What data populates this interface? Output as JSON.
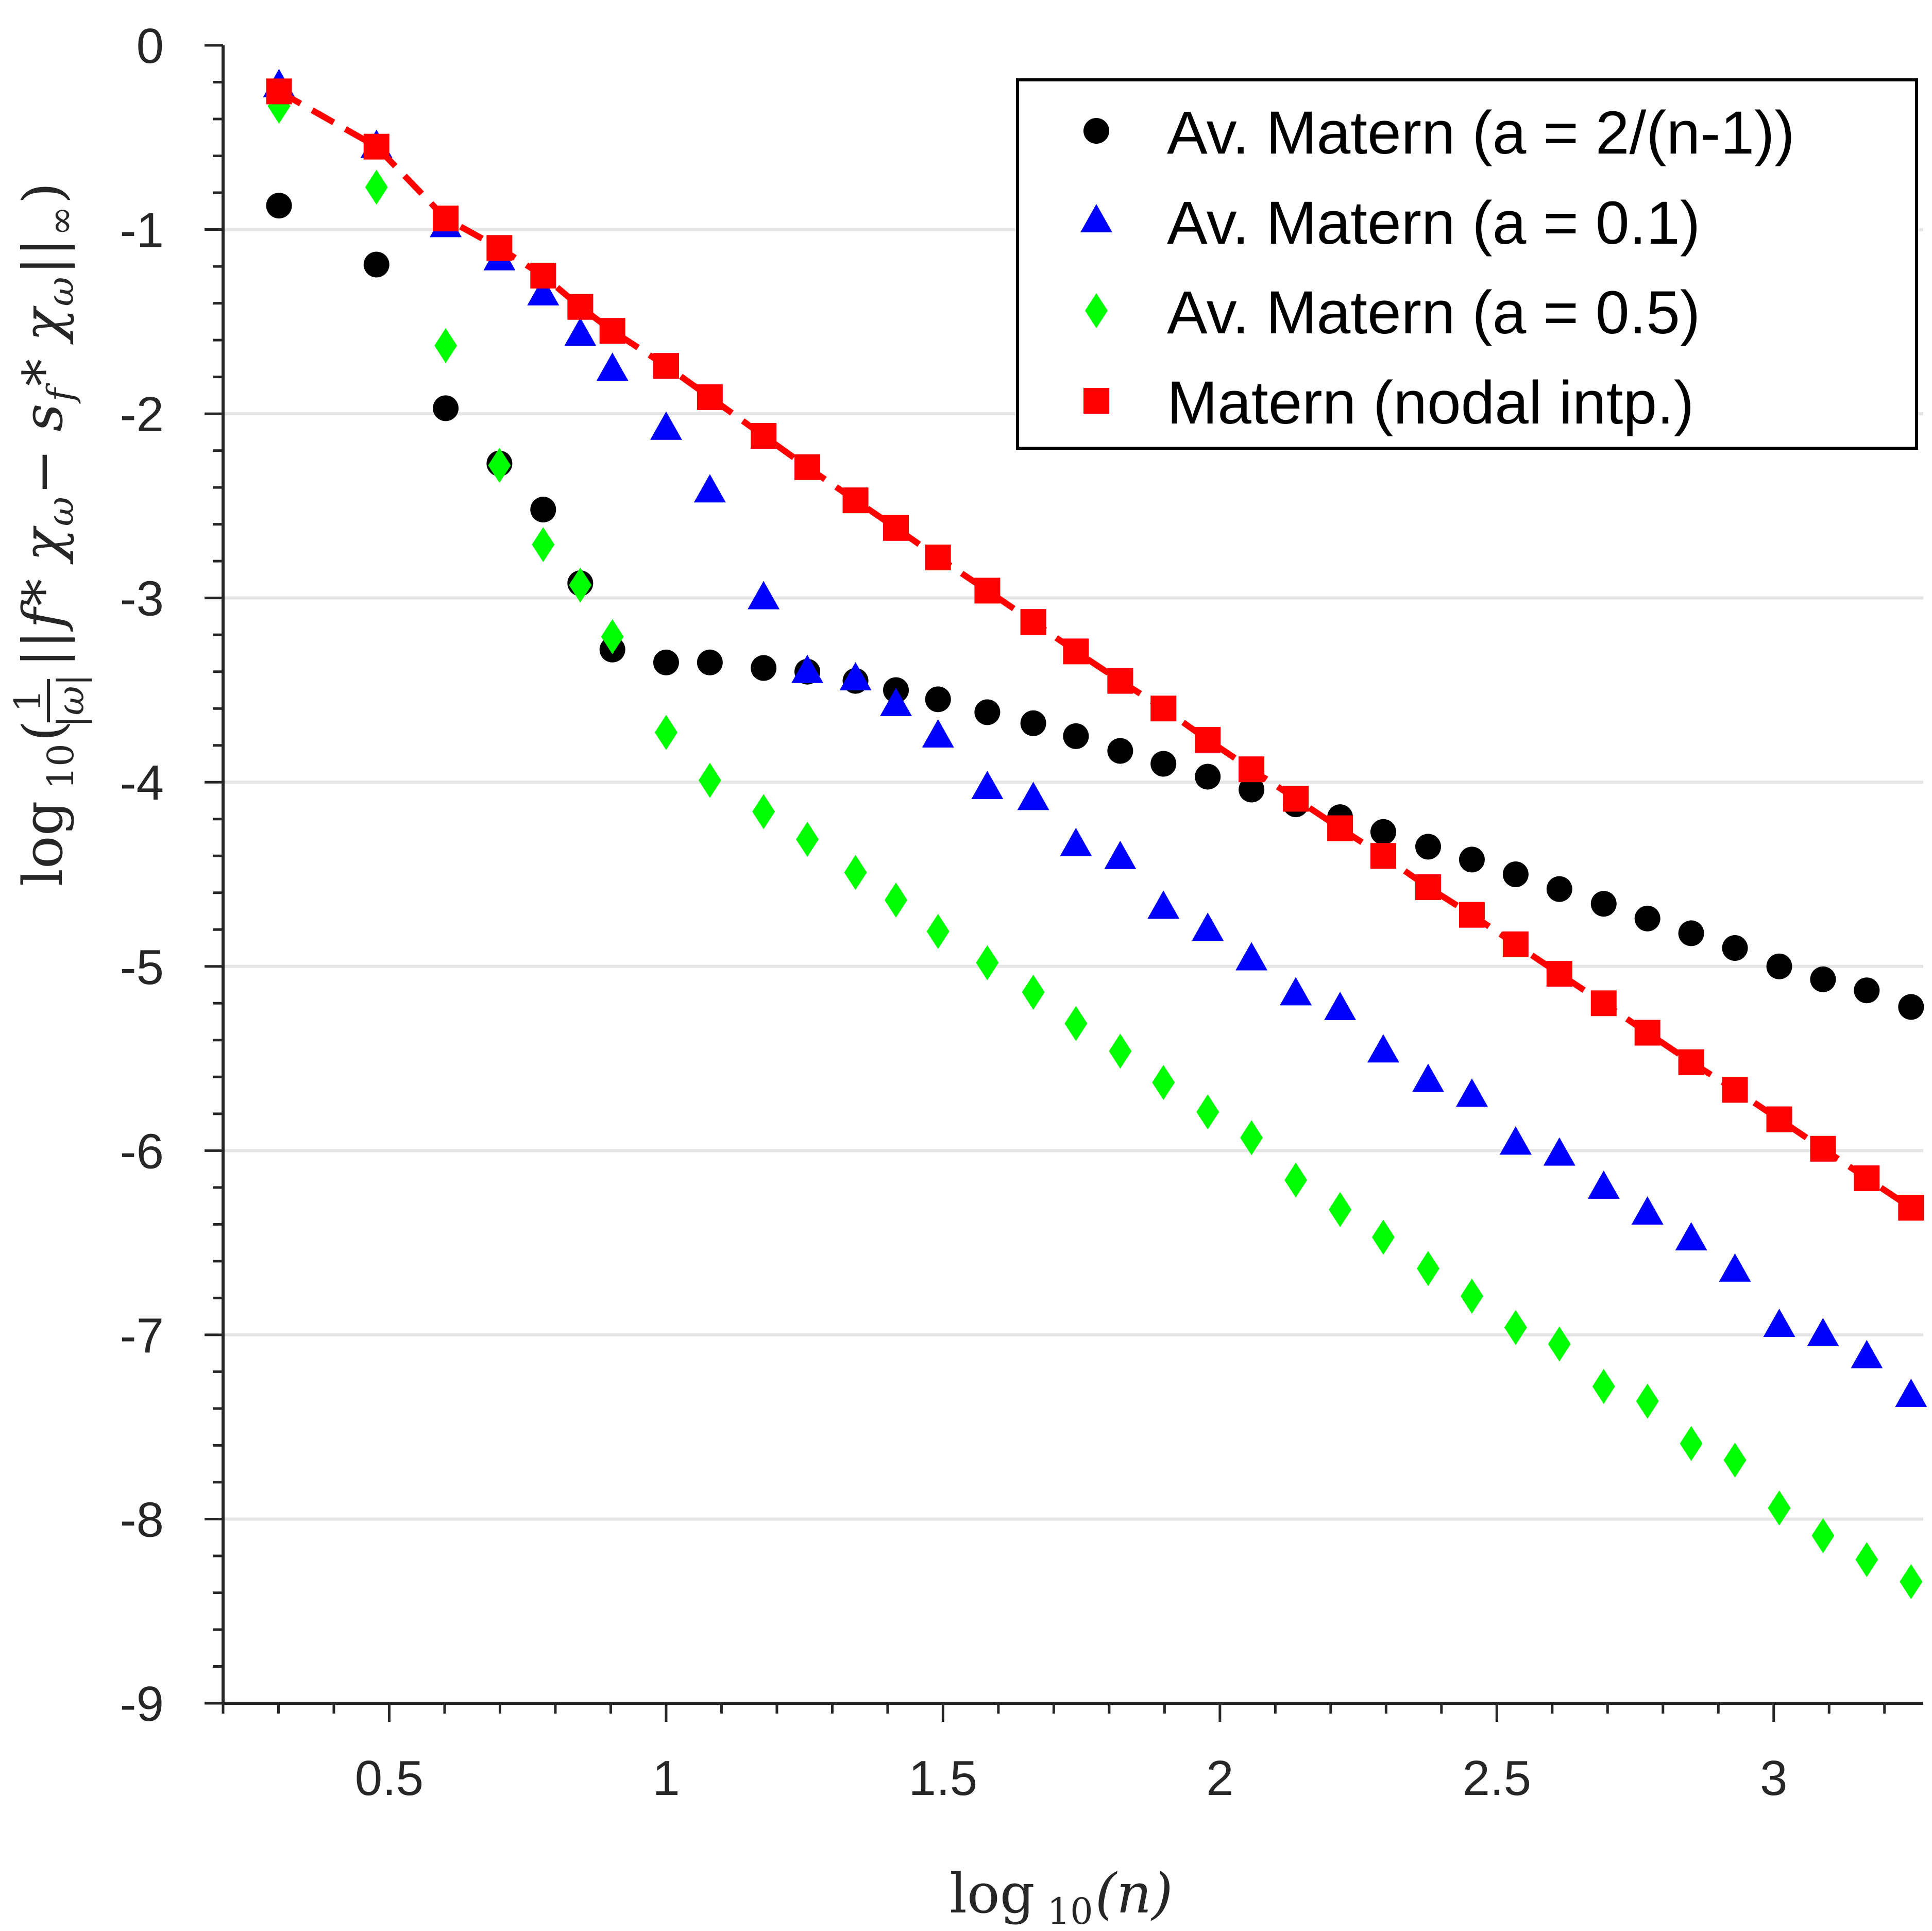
{
  "colors": {
    "black_series": "#000000",
    "blue_series": "#0000ff",
    "green_series": "#00ff00",
    "red_series": "#ff0000",
    "grid": "#e5e5e5",
    "axis": "#262626"
  },
  "chart_data": {
    "type": "scatter",
    "title": "",
    "xlabel": "log 10(n)",
    "xlabel_parts": {
      "fn": "log",
      "sub": "10",
      "arg": "(n)"
    },
    "ylabel": "log 10(1/|ω| ||f * χω − sf * χω||∞)",
    "ylabel_parts": {
      "fn": "log",
      "sub": "10",
      "frac_num": "1",
      "frac_den": "|ω|",
      "body_open": "(",
      "norm_l": "||",
      "f1": "f",
      "star1": " * ",
      "chi1": "χ",
      "chi1_sub": "ω",
      "minus": " − ",
      "s": "s",
      "s_sub": "f",
      "star2": " * ",
      "chi2": "χ",
      "chi2_sub": "ω",
      "norm_r": "||",
      "norm_sub": "∞",
      "body_close": ")"
    },
    "xlim": [
      0.2,
      3.27
    ],
    "ylim": [
      -9,
      0
    ],
    "xticks": [
      0.5,
      1,
      1.5,
      2,
      2.5,
      3
    ],
    "xtick_labels": [
      "0.5",
      "1",
      "1.5",
      "2",
      "2.5",
      "3"
    ],
    "yticks": [
      0,
      -1,
      -2,
      -3,
      -4,
      -5,
      -6,
      -7,
      -8,
      -9
    ],
    "ytick_labels": [
      "0",
      "-1",
      "-2",
      "-3",
      "-4",
      "-5",
      "-6",
      "-7",
      "-8",
      "-9"
    ],
    "grid": "horizontal",
    "legend_position": "top-right",
    "series": [
      {
        "name": "Av. Matern (a = 2/(n-1))",
        "marker": "circle",
        "color": "#000000",
        "x": [
          0.301,
          0.477,
          0.602,
          0.699,
          0.778,
          0.845,
          0.903,
          1.0,
          1.079,
          1.176,
          1.255,
          1.342,
          1.415,
          1.491,
          1.58,
          1.663,
          1.74,
          1.82,
          1.898,
          1.978,
          2.057,
          2.137,
          2.217,
          2.295,
          2.376,
          2.455,
          2.534,
          2.613,
          2.693,
          2.772,
          2.851,
          2.93,
          3.01,
          3.089,
          3.168,
          3.248
        ],
        "y": [
          -0.87,
          -1.19,
          -1.97,
          -2.27,
          -2.52,
          -2.92,
          -3.28,
          -3.35,
          -3.35,
          -3.38,
          -3.4,
          -3.45,
          -3.5,
          -3.55,
          -3.62,
          -3.68,
          -3.75,
          -3.83,
          -3.9,
          -3.97,
          -4.04,
          -4.12,
          -4.19,
          -4.27,
          -4.35,
          -4.42,
          -4.5,
          -4.58,
          -4.66,
          -4.74,
          -4.82,
          -4.9,
          -5.0,
          -5.07,
          -5.13,
          -5.22
        ]
      },
      {
        "name": "Av. Matern (a = 0.1)",
        "marker": "triangle",
        "color": "#0000ff",
        "x": [
          0.301,
          0.477,
          0.602,
          0.699,
          0.778,
          0.845,
          0.903,
          1.0,
          1.079,
          1.176,
          1.255,
          1.342,
          1.415,
          1.491,
          1.58,
          1.663,
          1.74,
          1.82,
          1.898,
          1.978,
          2.057,
          2.137,
          2.217,
          2.295,
          2.376,
          2.455,
          2.534,
          2.613,
          2.693,
          2.772,
          2.851,
          2.93,
          3.01,
          3.089,
          3.168,
          3.248
        ],
        "y": [
          -0.22,
          -0.55,
          -0.98,
          -1.16,
          -1.35,
          -1.57,
          -1.76,
          -2.08,
          -2.42,
          -3.0,
          -3.4,
          -3.44,
          -3.58,
          -3.75,
          -4.03,
          -4.09,
          -4.34,
          -4.41,
          -4.68,
          -4.8,
          -4.96,
          -5.15,
          -5.23,
          -5.46,
          -5.62,
          -5.7,
          -5.96,
          -6.02,
          -6.2,
          -6.34,
          -6.48,
          -6.65,
          -6.95,
          -7.0,
          -7.12,
          -7.33
        ]
      },
      {
        "name": "Av. Matern (a = 0.5)",
        "marker": "diamond",
        "color": "#00ff00",
        "x": [
          0.301,
          0.477,
          0.602,
          0.699,
          0.778,
          0.845,
          0.903,
          1.0,
          1.079,
          1.176,
          1.255,
          1.342,
          1.415,
          1.491,
          1.58,
          1.663,
          1.74,
          1.82,
          1.898,
          1.978,
          2.057,
          2.137,
          2.217,
          2.295,
          2.376,
          2.455,
          2.534,
          2.613,
          2.693,
          2.772,
          2.851,
          2.93,
          3.01,
          3.089,
          3.168,
          3.248
        ],
        "y": [
          -0.33,
          -0.77,
          -1.63,
          -2.28,
          -2.71,
          -2.93,
          -3.21,
          -3.73,
          -3.99,
          -4.16,
          -4.31,
          -4.49,
          -4.64,
          -4.81,
          -4.98,
          -5.14,
          -5.31,
          -5.46,
          -5.63,
          -5.79,
          -5.93,
          -6.16,
          -6.32,
          -6.47,
          -6.64,
          -6.79,
          -6.96,
          -7.05,
          -7.28,
          -7.36,
          -7.59,
          -7.68,
          -7.94,
          -8.09,
          -8.22,
          -8.34
        ]
      },
      {
        "name": "Matern (nodal intp.)",
        "marker": "square",
        "line": "dashed",
        "color": "#ff0000",
        "x": [
          0.301,
          0.477,
          0.602,
          0.699,
          0.778,
          0.845,
          0.903,
          1.0,
          1.079,
          1.176,
          1.255,
          1.342,
          1.415,
          1.491,
          1.58,
          1.663,
          1.74,
          1.82,
          1.898,
          1.978,
          2.057,
          2.137,
          2.217,
          2.295,
          2.376,
          2.455,
          2.534,
          2.613,
          2.693,
          2.772,
          2.851,
          2.93,
          3.01,
          3.089,
          3.168,
          3.248
        ],
        "y": [
          -0.25,
          -0.55,
          -0.94,
          -1.1,
          -1.25,
          -1.42,
          -1.55,
          -1.74,
          -1.91,
          -2.12,
          -2.29,
          -2.47,
          -2.62,
          -2.78,
          -2.96,
          -3.13,
          -3.29,
          -3.45,
          -3.6,
          -3.77,
          -3.93,
          -4.09,
          -4.25,
          -4.4,
          -4.57,
          -4.72,
          -4.88,
          -5.04,
          -5.2,
          -5.36,
          -5.52,
          -5.67,
          -5.83,
          -5.99,
          -6.15,
          -6.31
        ]
      }
    ]
  }
}
